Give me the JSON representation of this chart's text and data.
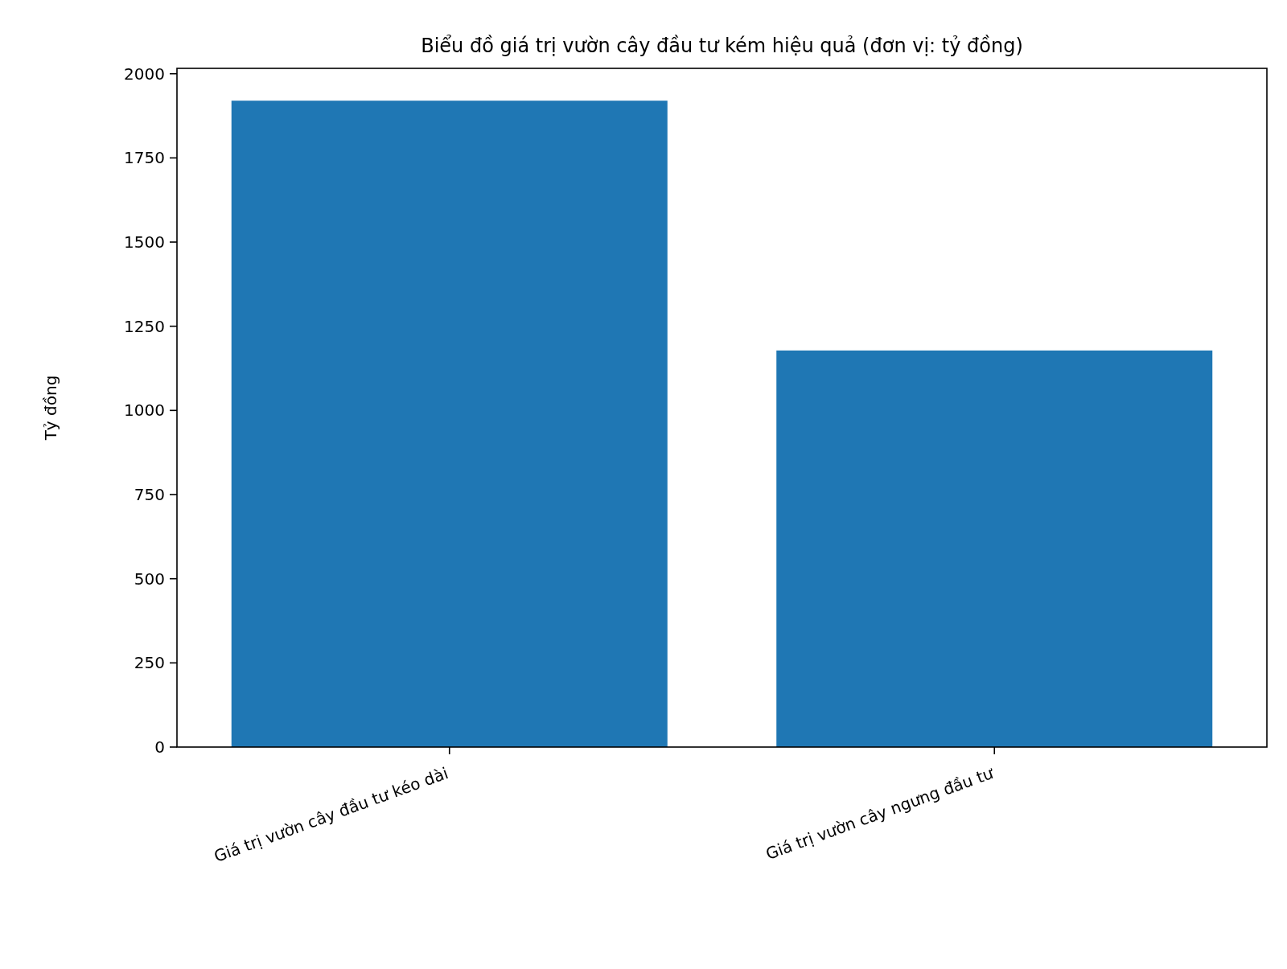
{
  "chart_data": {
    "type": "bar",
    "title": "Biểu đồ giá trị vườn cây đầu tư kém hiệu quả (đơn vị: tỷ đồng)",
    "ylabel": "Tỷ đồng",
    "categories": [
      "Giá trị vườn cây đầu tư kéo dài",
      "Giá trị vườn cây ngưng đầu tư"
    ],
    "values": [
      1920,
      1178
    ],
    "color": "#1f77b4",
    "ylim": [
      0,
      2016
    ],
    "yticks": [
      0,
      250,
      500,
      750,
      1000,
      1250,
      1500,
      1750,
      2000
    ],
    "grid": false
  }
}
